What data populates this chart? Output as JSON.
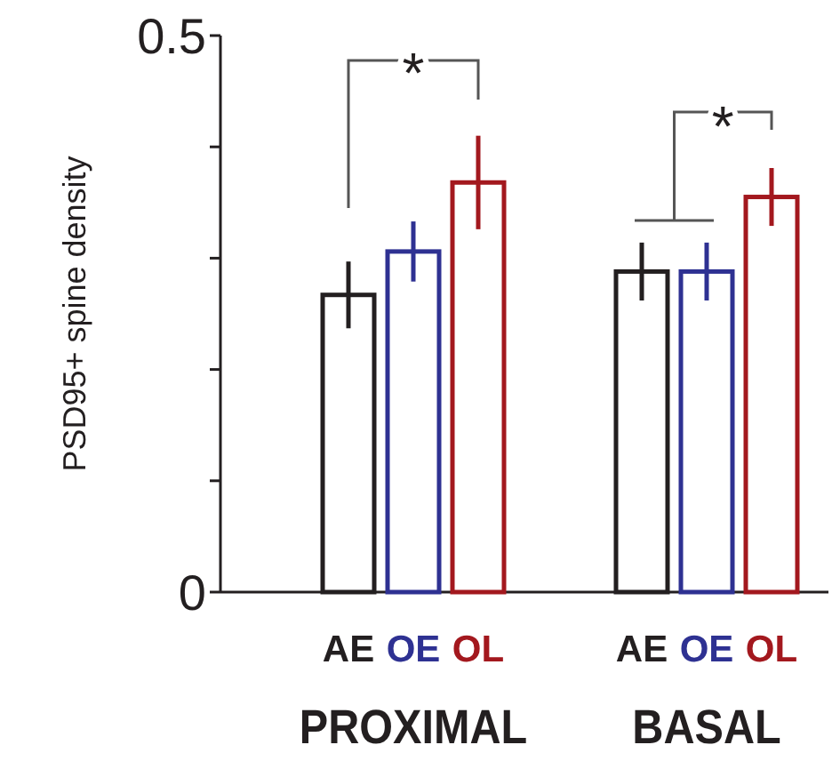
{
  "chart_data": {
    "type": "bar",
    "ylabel": "PSD95+ spine density",
    "categories": [
      "PROXIMAL",
      "BASAL"
    ],
    "series": [
      {
        "name": "AE",
        "color": "#231f20",
        "values": [
          0.267,
          0.288
        ],
        "errors": [
          0.03,
          0.026
        ]
      },
      {
        "name": "OE",
        "color": "#2e3192",
        "values": [
          0.306,
          0.288
        ],
        "errors": [
          0.027,
          0.026
        ]
      },
      {
        "name": "OL",
        "color": "#a3181e",
        "values": [
          0.368,
          0.355
        ],
        "errors": [
          0.042,
          0.026
        ]
      }
    ],
    "ylim": [
      0,
      0.5
    ],
    "yticks": [
      0,
      {
        "value": 0.1,
        "label": null
      },
      {
        "value": 0.2,
        "label": null
      },
      {
        "value": 0.3,
        "label": null
      },
      {
        "value": 0.4,
        "label": null
      },
      0.5
    ],
    "annotations": [
      "*",
      "*"
    ],
    "grid": false
  }
}
